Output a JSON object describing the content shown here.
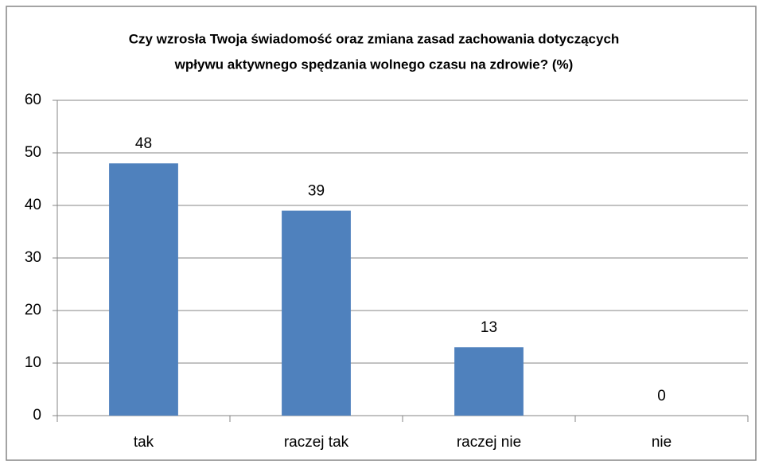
{
  "chart_data": {
    "type": "bar",
    "title": [
      "Czy wzrosła Twoja świadomość oraz zmiana zasad zachowania dotyczących",
      "wpływu aktywnego spędzania wolnego czasu na zdrowie? (%)"
    ],
    "categories": [
      "tak",
      "raczej tak",
      "raczej nie",
      "nie"
    ],
    "values": [
      48,
      39,
      13,
      0
    ],
    "color": "#4f81bd",
    "ylim": [
      0,
      60
    ],
    "yticks": [
      0,
      10,
      20,
      30,
      40,
      50,
      60
    ],
    "grid": true
  }
}
